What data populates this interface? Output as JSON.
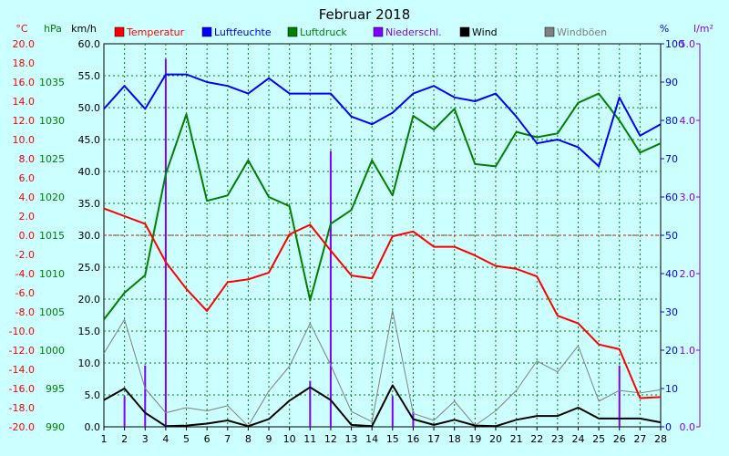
{
  "chart_data": {
    "type": "line",
    "title": "Februar 2018",
    "x": [
      1,
      2,
      3,
      4,
      5,
      6,
      7,
      8,
      9,
      10,
      11,
      12,
      13,
      14,
      15,
      16,
      17,
      18,
      19,
      20,
      21,
      22,
      23,
      24,
      25,
      26,
      27,
      28
    ],
    "x_ticks": [
      "1",
      "2",
      "3",
      "4",
      "5",
      "6",
      "7",
      "8",
      "9",
      "10",
      "11",
      "12",
      "13",
      "14",
      "15",
      "16",
      "17",
      "18",
      "19",
      "20",
      "21",
      "22",
      "23",
      "24",
      "25",
      "26",
      "27",
      "28"
    ],
    "axes": {
      "temp": {
        "unit": "°C",
        "range": [
          -20,
          20
        ],
        "ticks": [
          "-20.0",
          "-18.0",
          "-16.0",
          "-14.0",
          "-12.0",
          "-10.0",
          "-8.0",
          "-6.0",
          "-4.0",
          "-2.0",
          "0.0",
          "2.0",
          "4.0",
          "6.0",
          "8.0",
          "10.0",
          "12.0",
          "14.0",
          "16.0",
          "18.0",
          "20.0"
        ],
        "color": "#ff0000"
      },
      "pressure": {
        "unit": "hPa",
        "range": [
          990,
          1040
        ],
        "ticks": [
          "990",
          "995",
          "1000",
          "1005",
          "1010",
          "1015",
          "1020",
          "1025",
          "1030",
          "1035"
        ],
        "color": "#008000"
      },
      "wind": {
        "unit": "km/h",
        "range": [
          0,
          60
        ],
        "ticks": [
          "0.0",
          "5.0",
          "10.0",
          "15.0",
          "20.0",
          "25.0",
          "30.0",
          "35.0",
          "40.0",
          "45.0",
          "50.0",
          "55.0",
          "60.0"
        ],
        "color": "#000000"
      },
      "humidity": {
        "unit": "%",
        "range": [
          0,
          100
        ],
        "ticks": [
          "0",
          "10",
          "20",
          "30",
          "40",
          "50",
          "60",
          "70",
          "80",
          "90",
          "100"
        ],
        "color": "#0000ff"
      },
      "precip": {
        "unit": "l/m²",
        "range": [
          0,
          5
        ],
        "ticks": [
          "0.0",
          "1.0",
          "2.0",
          "3.0",
          "4.0",
          "5.0"
        ],
        "color": "#8000ff"
      }
    },
    "grid": true,
    "legend_position": "top",
    "series": [
      {
        "name": "Temperatur",
        "key": "temp",
        "axis": "temp",
        "color": "#ff0000",
        "width": 2,
        "values": [
          2.8,
          2.0,
          1.2,
          -2.8,
          -5.6,
          -7.9,
          -4.9,
          -4.6,
          -3.9,
          0.1,
          1.1,
          -1.6,
          -4.2,
          -4.5,
          -0.1,
          0.4,
          -1.2,
          -1.2,
          -2.1,
          -3.2,
          -3.5,
          -4.3,
          -8.4,
          -9.2,
          -11.4,
          -11.9,
          -17.0,
          -16.9
        ]
      },
      {
        "name": "Luftfeuchte",
        "key": "humidity",
        "axis": "humidity",
        "color": "#0000ff",
        "width": 2,
        "values": [
          83,
          89,
          83,
          92,
          92,
          90,
          89,
          87,
          91,
          87,
          87,
          87,
          81,
          79,
          82,
          87,
          89,
          86,
          85,
          87,
          81,
          74,
          75,
          73,
          68,
          86,
          76,
          79
        ]
      },
      {
        "name": "Luftdruck",
        "key": "pressure",
        "axis": "pressure",
        "color": "#008000",
        "width": 2,
        "values": [
          1004.0,
          1007.5,
          1009.8,
          1023.0,
          1030.8,
          1019.5,
          1020.2,
          1024.8,
          1020.0,
          1018.8,
          1006.5,
          1016.5,
          1018.3,
          1024.8,
          1020.2,
          1030.6,
          1028.8,
          1031.5,
          1024.3,
          1024.0,
          1028.5,
          1027.8,
          1028.3,
          1032.3,
          1033.5,
          1030.0,
          1025.8,
          1027.0
        ]
      },
      {
        "name": "Wind",
        "key": "wind",
        "axis": "wind",
        "color": "#000000",
        "width": 2,
        "values": [
          4.2,
          6.0,
          2.2,
          0.1,
          0.2,
          0.5,
          1.0,
          0.1,
          1.2,
          4.1,
          6.2,
          4.2,
          0.3,
          0.1,
          6.5,
          1.2,
          0.3,
          1.1,
          0.2,
          0.1,
          1.1,
          1.7,
          1.7,
          3.0,
          1.3,
          1.3,
          1.3,
          0.7
        ]
      },
      {
        "name": "Windböen",
        "key": "gust",
        "axis": "wind",
        "color": "#808080",
        "width": 1,
        "values": [
          11.5,
          16.8,
          6.0,
          2.2,
          3.0,
          2.5,
          3.3,
          0.1,
          5.6,
          9.5,
          16.2,
          9.7,
          2.4,
          0.8,
          18.2,
          2.1,
          1.0,
          4.0,
          0.2,
          2.5,
          5.7,
          10.3,
          8.6,
          12.7,
          4.0,
          5.7,
          5.3,
          5.8
        ]
      }
    ],
    "bars": {
      "name": "Niederschl.",
      "key": "precip",
      "axis": "precip",
      "color": "#8000ff",
      "values": [
        0.0,
        0.4,
        0.8,
        4.8,
        0,
        0,
        0,
        0,
        0,
        0,
        0.6,
        3.6,
        0,
        0,
        0.4,
        0.2,
        0,
        0,
        0,
        0,
        0,
        0,
        0,
        0,
        0,
        0.8,
        0,
        0
      ]
    },
    "legend": [
      {
        "label": "Temperatur",
        "color": "#ff0000"
      },
      {
        "label": "Luftfeuchte",
        "color": "#0000ff"
      },
      {
        "label": "Luftdruck",
        "color": "#008000"
      },
      {
        "label": "Niederschl.",
        "color": "#8000ff"
      },
      {
        "label": "Wind",
        "color": "#000000"
      },
      {
        "label": "Windböen",
        "color": "#808080"
      }
    ]
  }
}
